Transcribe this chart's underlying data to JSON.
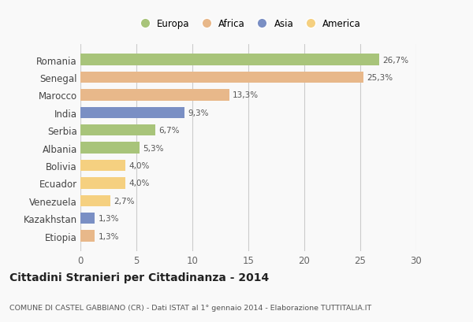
{
  "categories": [
    "Romania",
    "Senegal",
    "Marocco",
    "India",
    "Serbia",
    "Albania",
    "Bolivia",
    "Ecuador",
    "Venezuela",
    "Kazakhstan",
    "Etiopia"
  ],
  "values": [
    26.7,
    25.3,
    13.3,
    9.3,
    6.7,
    5.3,
    4.0,
    4.0,
    2.7,
    1.3,
    1.3
  ],
  "labels": [
    "26,7%",
    "25,3%",
    "13,3%",
    "9,3%",
    "6,7%",
    "5,3%",
    "4,0%",
    "4,0%",
    "2,7%",
    "1,3%",
    "1,3%"
  ],
  "colors": [
    "#a8c47a",
    "#e8b88a",
    "#e8b88a",
    "#7a8fc4",
    "#a8c47a",
    "#a8c47a",
    "#f5d080",
    "#f5d080",
    "#f5d080",
    "#7a8fc4",
    "#e8b88a"
  ],
  "legend_labels": [
    "Europa",
    "Africa",
    "Asia",
    "America"
  ],
  "legend_colors": [
    "#a8c47a",
    "#e8b88a",
    "#7a8fc4",
    "#f5d080"
  ],
  "title": "Cittadini Stranieri per Cittadinanza - 2014",
  "subtitle": "COMUNE DI CASTEL GABBIANO (CR) - Dati ISTAT al 1° gennaio 2014 - Elaborazione TUTTITALIA.IT",
  "xlim": [
    0,
    30
  ],
  "xticks": [
    0,
    5,
    10,
    15,
    20,
    25,
    30
  ],
  "background_color": "#f9f9f9",
  "grid_color": "#cccccc",
  "bar_height": 0.65
}
